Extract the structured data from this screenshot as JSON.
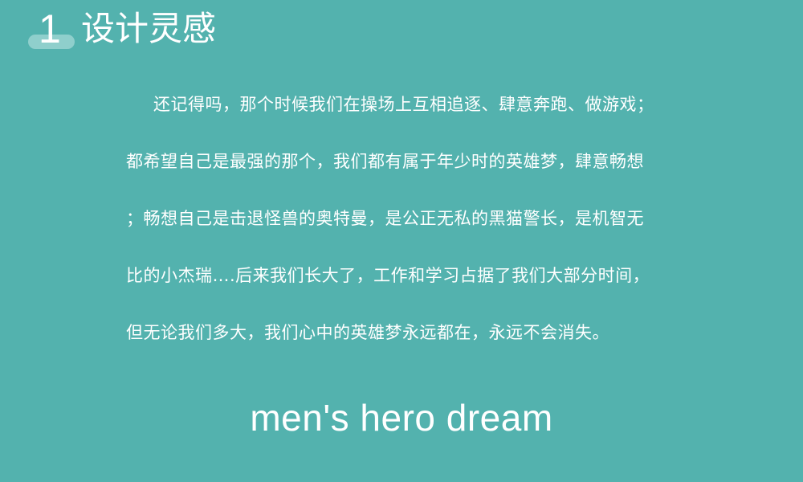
{
  "header": {
    "number": "1",
    "title": "设计灵感"
  },
  "paragraph": {
    "lines": [
      "还记得吗，那个时候我们在操场上互相追逐、肆意奔跑、做游戏；",
      "都希望自己是最强的那个，我们都有属于年少时的英雄梦，肆意畅想",
      "；畅想自己是击退怪兽的奥特曼，是公正无私的黑猫警长，是机智无",
      "比的小杰瑞….后来我们长大了，工作和学习占据了我们大部分时间，",
      "但无论我们多大，我们心中的英雄梦永远都在，永远不会消失。"
    ]
  },
  "subtitle": "men's hero dream",
  "colors": {
    "background": "#53b2ae",
    "accent_bar": "#8fcfcc",
    "text": "#ffffff"
  }
}
